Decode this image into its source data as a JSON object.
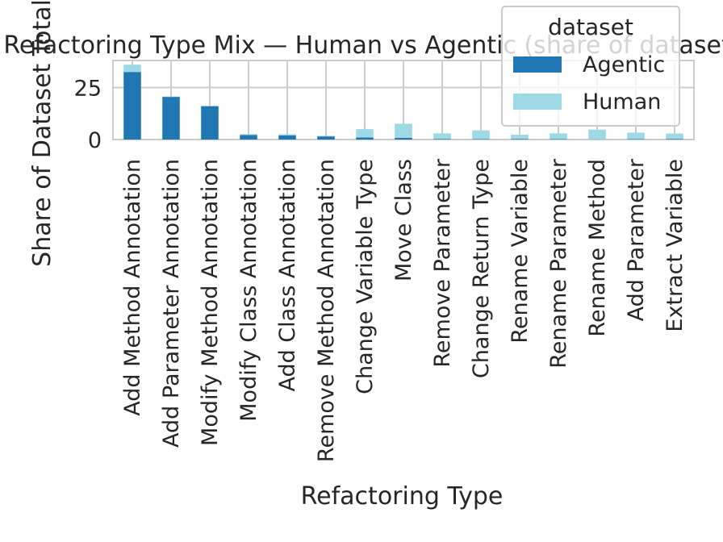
{
  "chart_data": {
    "type": "bar",
    "stacked": true,
    "title": "Refactoring Type Mix — Human vs Agentic (share of dataset total)",
    "xlabel": "Refactoring Type",
    "ylabel": "Share of Dataset Total",
    "ylim": [
      0,
      38
    ],
    "yticks": [
      0,
      25
    ],
    "grid": true,
    "legend": {
      "title": "dataset",
      "placement": "top-right"
    },
    "categories": [
      "Add Method Annotation",
      "Add Parameter Annotation",
      "Modify Method Annotation",
      "Modify Class Annotation",
      "Add Class Annotation",
      "Remove Method Annotation",
      "Change Variable Type",
      "Move Class",
      "Remove Parameter",
      "Change Return Type",
      "Rename Variable",
      "Rename Parameter",
      "Rename Method",
      "Add Parameter",
      "Extract Variable"
    ],
    "series": [
      {
        "name": "Agentic",
        "color": "#1f77b4",
        "values": [
          32.5,
          20.5,
          16.0,
          2.2,
          2.0,
          1.5,
          1.0,
          0.8,
          0.3,
          0.2,
          0.3,
          0.2,
          0.1,
          0.2,
          0.3
        ]
      },
      {
        "name": "Human",
        "color": "#9edae5",
        "values": [
          3.5,
          0.2,
          0.3,
          0.4,
          0.6,
          0.3,
          4.0,
          6.8,
          2.7,
          4.2,
          2.0,
          2.8,
          4.7,
          3.1,
          2.6
        ]
      }
    ]
  }
}
